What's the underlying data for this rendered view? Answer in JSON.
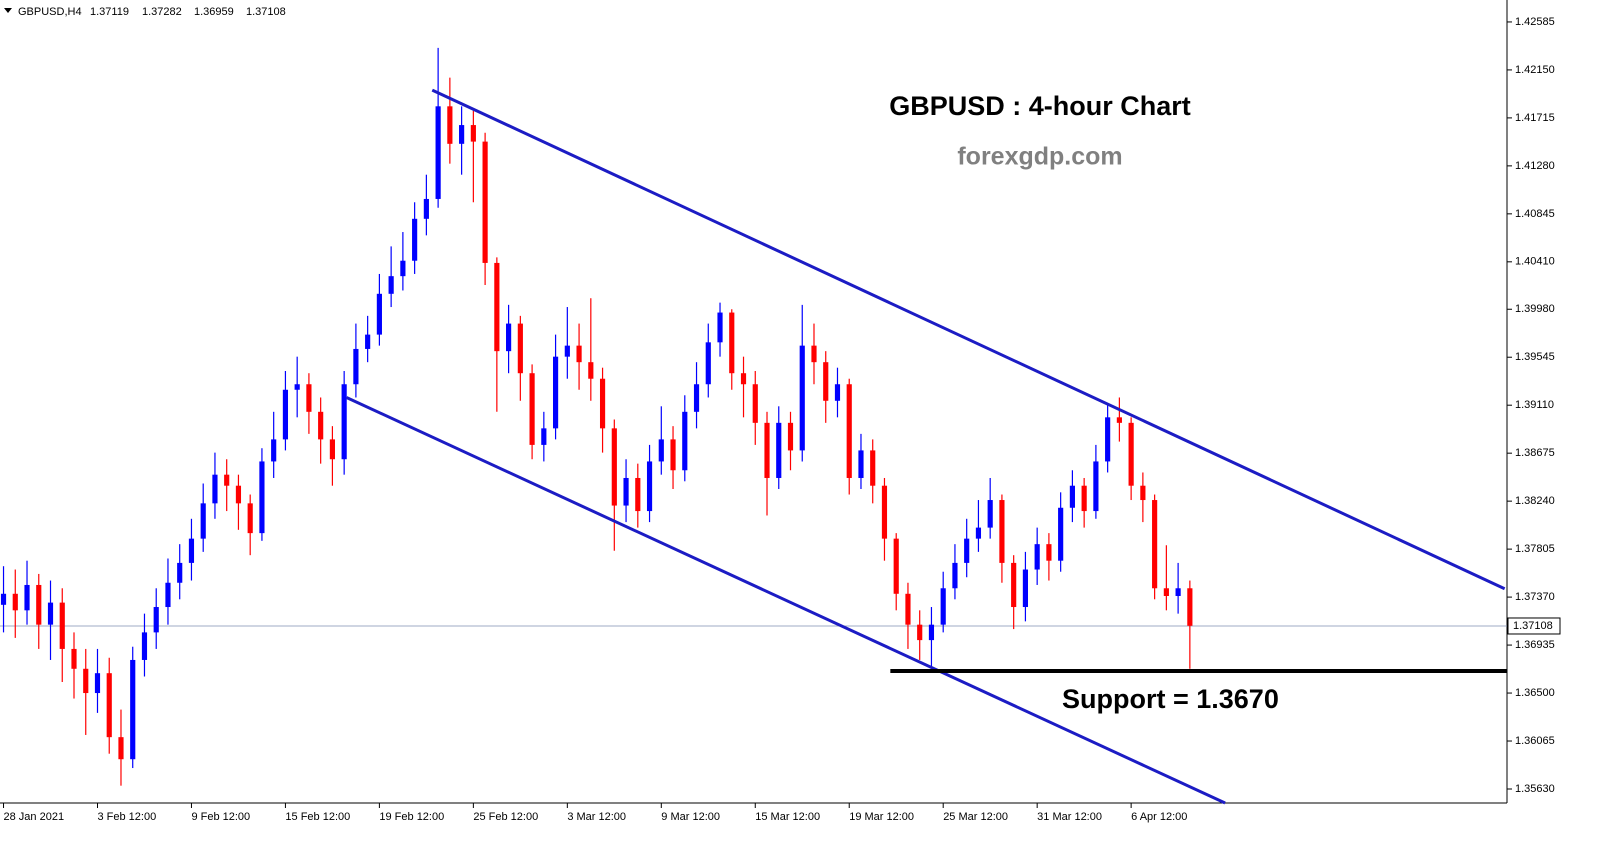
{
  "chart_data": {
    "type": "candlestick",
    "symbol": "GBPUSD,H4",
    "ohlc": [
      1.37119,
      1.37282,
      1.36959,
      1.37108
    ],
    "title": "GBPUSD : 4-hour Chart",
    "subtitle": "forexgdp.com",
    "annotation": "Support = 1.3670",
    "support": {
      "level": 1.367,
      "x": [
        75.5,
        128
      ]
    },
    "trendlines": [
      {
        "x": [
          36.5,
          127.8
        ],
        "y": [
          1.41967,
          1.37446
        ]
      },
      {
        "x": [
          29.2,
          104.0
        ],
        "y": [
          1.3918,
          1.35503
        ]
      }
    ],
    "up_color": "#0000ff",
    "down_color": "#ff0000",
    "line_color": "#1c1cc4",
    "xlim": [
      -0.3,
      128
    ],
    "ylim": [
      1.35503,
      1.42784
    ],
    "xticks": [
      {
        "value": 0,
        "label": "28 Jan 2021"
      },
      {
        "value": 8,
        "label": "3 Feb 12:00"
      },
      {
        "value": 16,
        "label": "9 Feb 12:00"
      },
      {
        "value": 24,
        "label": "15 Feb 12:00"
      },
      {
        "value": 32,
        "label": "19 Feb 12:00"
      },
      {
        "value": 40,
        "label": "25 Feb 12:00"
      },
      {
        "value": 48,
        "label": "3 Mar 12:00"
      },
      {
        "value": 56,
        "label": "9 Mar 12:00"
      },
      {
        "value": 64,
        "label": "15 Mar 12:00"
      },
      {
        "value": 72,
        "label": "19 Mar 12:00"
      },
      {
        "value": 80,
        "label": "25 Mar 12:00"
      },
      {
        "value": 88,
        "label": "31 Mar 12:00"
      },
      {
        "value": 96,
        "label": "6 Apr 12:00"
      }
    ],
    "yticks": [
      1.42585,
      {
        "value": 1.4215,
        "label": "1.42150"
      },
      1.41715,
      {
        "value": 1.4128,
        "label": "1.41280"
      },
      1.40845,
      {
        "value": 1.4041,
        "label": "1.40410"
      },
      {
        "value": 1.3998,
        "label": "1.39980"
      },
      1.39545,
      {
        "value": 1.3911,
        "label": "1.39110"
      },
      1.38675,
      {
        "value": 1.3824,
        "label": "1.38240"
      },
      1.37805,
      {
        "value": 1.3737,
        "label": "1.37370"
      },
      1.36935,
      {
        "value": 1.365,
        "label": "1.36500"
      },
      1.36065,
      {
        "value": 1.3563,
        "label": "1.35630"
      }
    ],
    "open": [
      1.373,
      1.374,
      1.3725,
      1.3748,
      1.3712,
      1.3732,
      1.369,
      1.3672,
      1.365,
      1.3668,
      1.361,
      1.359,
      1.368,
      1.3705,
      1.3728,
      1.375,
      1.3768,
      1.379,
      1.3822,
      1.3848,
      1.3838,
      1.3822,
      1.3795,
      1.386,
      1.388,
      1.3925,
      1.393,
      1.3905,
      1.388,
      1.3862,
      1.393,
      1.3962,
      1.3975,
      1.4012,
      1.4028,
      1.4042,
      1.408,
      1.4098,
      1.4182,
      1.4148,
      1.4165,
      1.415,
      1.404,
      1.396,
      1.3985,
      1.394,
      1.3875,
      1.389,
      1.3955,
      1.3965,
      1.395,
      1.3935,
      1.389,
      1.382,
      1.3845,
      1.3815,
      1.386,
      1.388,
      1.3852,
      1.3905,
      1.393,
      1.3968,
      1.3995,
      1.394,
      1.393,
      1.3895,
      1.3845,
      1.3895,
      1.387,
      1.3965,
      1.395,
      1.3915,
      1.393,
      1.3845,
      1.387,
      1.3838,
      1.379,
      1.374,
      1.3712,
      1.3698,
      1.3712,
      1.3745,
      1.3768,
      1.379,
      1.38,
      1.3825,
      1.3768,
      1.3728,
      1.3762,
      1.3785,
      1.377,
      1.3818,
      1.3838,
      1.3815,
      1.386,
      1.39,
      1.3895,
      1.3838,
      1.3825,
      1.3745,
      1.3738,
      1.3745
    ],
    "high": [
      1.3765,
      1.3762,
      1.377,
      1.3758,
      1.3752,
      1.3745,
      1.3705,
      1.369,
      1.369,
      1.3682,
      1.3635,
      1.3692,
      1.3722,
      1.3745,
      1.3772,
      1.3785,
      1.3808,
      1.384,
      1.3868,
      1.3862,
      1.3848,
      1.383,
      1.3872,
      1.3905,
      1.3942,
      1.3955,
      1.394,
      1.3918,
      1.3892,
      1.3942,
      1.3985,
      1.3992,
      1.403,
      1.4055,
      1.4068,
      1.4095,
      1.412,
      1.4235,
      1.4208,
      1.4182,
      1.4178,
      1.4158,
      1.4045,
      1.4002,
      1.3992,
      1.3948,
      1.3905,
      1.3975,
      1.4,
      1.3985,
      1.4008,
      1.3945,
      1.3898,
      1.3862,
      1.3858,
      1.3875,
      1.391,
      1.3892,
      1.392,
      1.395,
      1.3985,
      1.4004,
      1.3998,
      1.3955,
      1.3942,
      1.3905,
      1.391,
      1.3905,
      1.4002,
      1.3985,
      1.396,
      1.3945,
      1.3935,
      1.3885,
      1.388,
      1.3845,
      1.3795,
      1.375,
      1.3725,
      1.3728,
      1.376,
      1.3785,
      1.3808,
      1.3825,
      1.3845,
      1.383,
      1.3775,
      1.3778,
      1.38,
      1.3795,
      1.3832,
      1.3852,
      1.3845,
      1.3875,
      1.3912,
      1.3918,
      1.39,
      1.385,
      1.383,
      1.3784,
      1.3768,
      1.3752
    ],
    "low": [
      1.3705,
      1.37,
      1.3712,
      1.369,
      1.368,
      1.366,
      1.3645,
      1.3612,
      1.3632,
      1.3595,
      1.3566,
      1.3582,
      1.3665,
      1.369,
      1.3712,
      1.3735,
      1.3752,
      1.3778,
      1.3808,
      1.3815,
      1.3798,
      1.3775,
      1.3788,
      1.3845,
      1.387,
      1.39,
      1.3885,
      1.3858,
      1.3838,
      1.3848,
      1.3918,
      1.395,
      1.3965,
      1.4,
      1.4015,
      1.403,
      1.4065,
      1.409,
      1.413,
      1.412,
      1.4095,
      1.402,
      1.3905,
      1.394,
      1.3915,
      1.3862,
      1.386,
      1.388,
      1.3935,
      1.3925,
      1.3915,
      1.3868,
      1.3779,
      1.3805,
      1.38,
      1.3805,
      1.3848,
      1.3835,
      1.3842,
      1.389,
      1.3918,
      1.3955,
      1.3925,
      1.39,
      1.3875,
      1.3811,
      1.3835,
      1.3852,
      1.386,
      1.393,
      1.3895,
      1.39,
      1.383,
      1.3835,
      1.3822,
      1.377,
      1.3725,
      1.369,
      1.368,
      1.367,
      1.3705,
      1.3735,
      1.3755,
      1.3778,
      1.379,
      1.375,
      1.3708,
      1.3715,
      1.3748,
      1.3752,
      1.376,
      1.3805,
      1.38,
      1.3808,
      1.385,
      1.3878,
      1.3825,
      1.3805,
      1.3735,
      1.3725,
      1.3722,
      1.3672
    ],
    "close": [
      1.374,
      1.3725,
      1.3748,
      1.3712,
      1.3732,
      1.369,
      1.3672,
      1.365,
      1.3668,
      1.361,
      1.359,
      1.368,
      1.3705,
      1.3728,
      1.375,
      1.3768,
      1.379,
      1.3822,
      1.3848,
      1.3838,
      1.3822,
      1.3795,
      1.386,
      1.388,
      1.3925,
      1.393,
      1.3905,
      1.388,
      1.3862,
      1.393,
      1.3962,
      1.3975,
      1.4012,
      1.4028,
      1.4042,
      1.408,
      1.4098,
      1.4182,
      1.4148,
      1.4165,
      1.415,
      1.404,
      1.396,
      1.3985,
      1.394,
      1.3875,
      1.389,
      1.3955,
      1.3965,
      1.395,
      1.3935,
      1.389,
      1.382,
      1.3845,
      1.3815,
      1.386,
      1.388,
      1.3852,
      1.3905,
      1.393,
      1.3968,
      1.3995,
      1.394,
      1.393,
      1.3895,
      1.3845,
      1.3895,
      1.387,
      1.3965,
      1.395,
      1.3915,
      1.393,
      1.3845,
      1.387,
      1.3838,
      1.379,
      1.374,
      1.3712,
      1.3698,
      1.3712,
      1.3745,
      1.3768,
      1.379,
      1.38,
      1.3825,
      1.3768,
      1.3728,
      1.3762,
      1.3785,
      1.377,
      1.3818,
      1.3838,
      1.3815,
      1.386,
      1.39,
      1.3895,
      1.3838,
      1.3825,
      1.3745,
      1.3738,
      1.3745,
      1.3711
    ]
  }
}
